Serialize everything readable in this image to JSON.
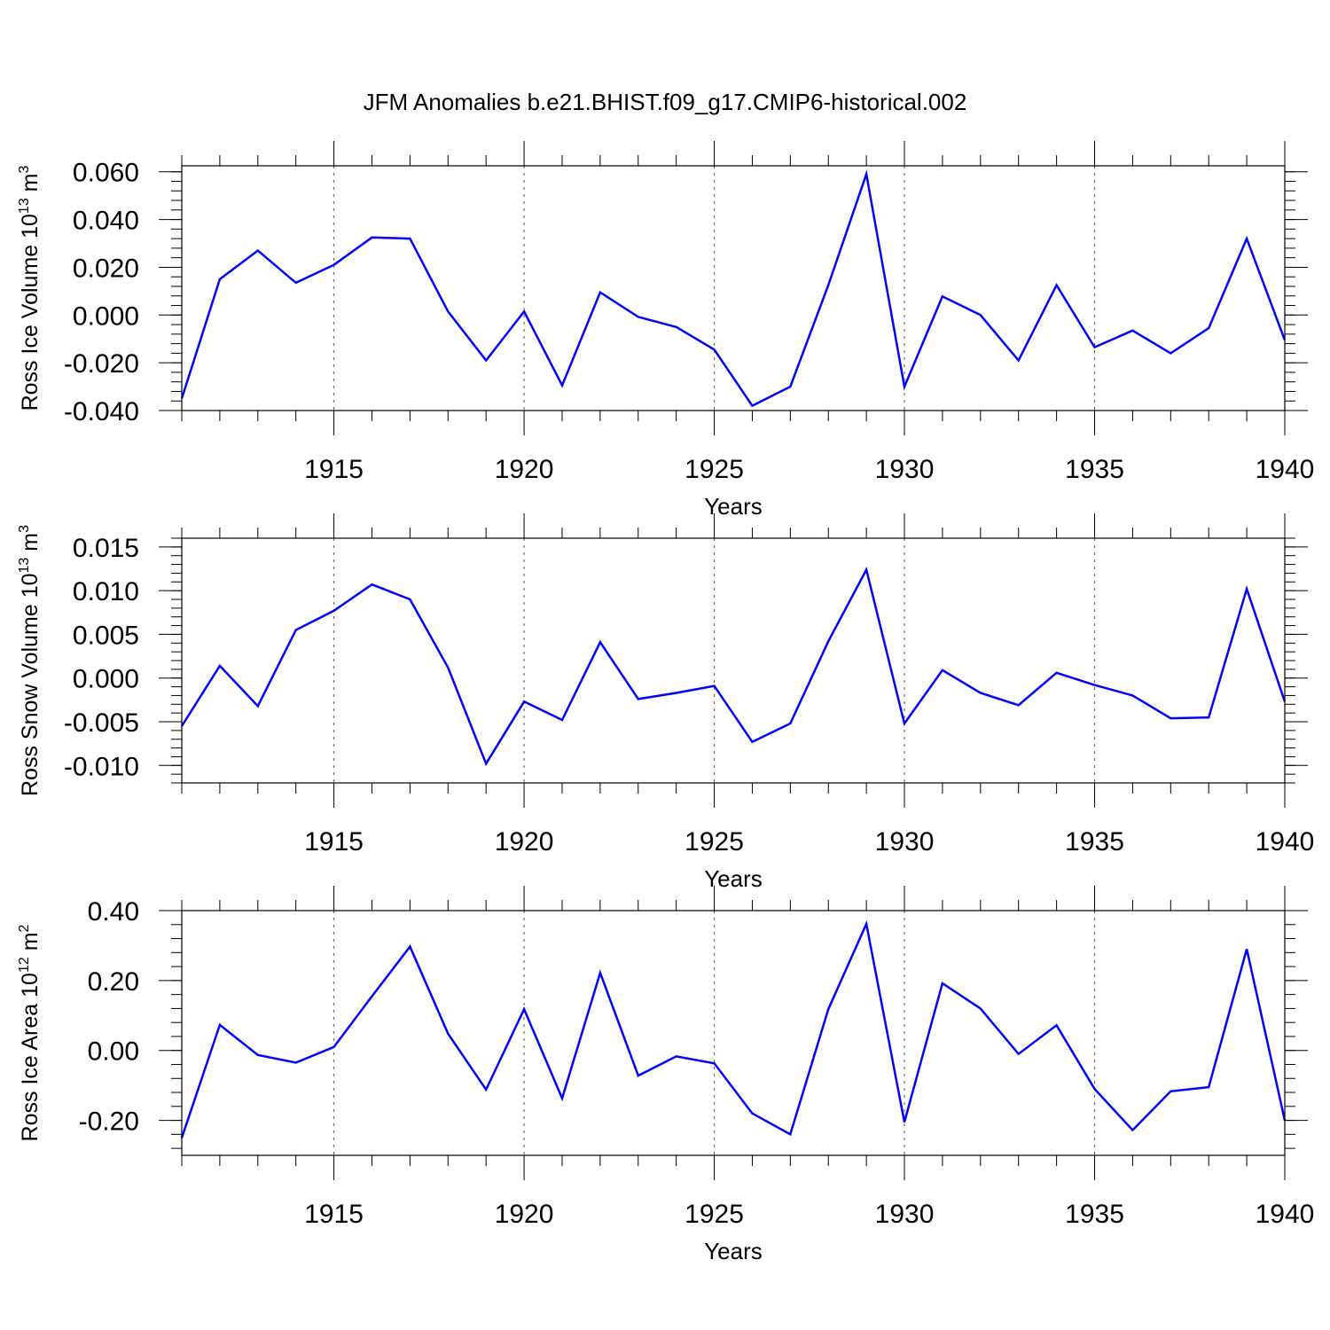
{
  "title": "JFM Anomalies b.e21.BHIST.f09_g17.CMIP6-historical.002",
  "colors": {
    "line": "#0000ff",
    "axis": "#000000",
    "grid": "#555555"
  },
  "chart_data": [
    {
      "type": "line",
      "ylabel": "Ross Ice Volume 10",
      "ylabel_sup": "13",
      "ylabel_unit": " m",
      "ylabel_unit_sup": "3",
      "xlabel": "Years",
      "xlim": [
        1911,
        1940
      ],
      "ylim": [
        -0.04,
        0.0625
      ],
      "yticks": [
        -0.04,
        -0.02,
        0.0,
        0.02,
        0.04,
        0.06
      ],
      "ytick_labels": [
        "-0.040",
        "-0.020",
        "0.000",
        "0.020",
        "0.040",
        "0.060"
      ],
      "xticks": [
        1915,
        1920,
        1925,
        1930,
        1935,
        1940
      ],
      "xtick_labels": [
        "1915",
        "1920",
        "1925",
        "1930",
        "1935",
        "1940"
      ],
      "x": [
        1911,
        1912,
        1913,
        1914,
        1915,
        1916,
        1917,
        1918,
        1919,
        1920,
        1921,
        1922,
        1923,
        1924,
        1925,
        1926,
        1927,
        1928,
        1929,
        1930,
        1931,
        1932,
        1933,
        1934,
        1935,
        1936,
        1937,
        1938,
        1939,
        1940
      ],
      "series": [
        {
          "name": "Ross Ice Volume",
          "values": [
            -0.035,
            0.015,
            0.027,
            0.0135,
            0.021,
            0.0325,
            0.032,
            0.0015,
            -0.019,
            0.0015,
            -0.0295,
            0.0095,
            -0.0008,
            -0.005,
            -0.0145,
            -0.038,
            -0.03,
            0.0125,
            0.059,
            -0.03,
            0.0078,
            0.0,
            -0.019,
            0.0125,
            -0.0135,
            -0.0065,
            -0.016,
            -0.0055,
            0.032,
            -0.0105
          ]
        }
      ]
    },
    {
      "type": "line",
      "ylabel": "Ross Snow Volume 10",
      "ylabel_sup": "13",
      "ylabel_unit": " m",
      "ylabel_unit_sup": "3",
      "xlabel": "Years",
      "xlim": [
        1911,
        1940
      ],
      "ylim": [
        -0.012,
        0.016
      ],
      "yticks": [
        -0.01,
        -0.005,
        0.0,
        0.005,
        0.01,
        0.015
      ],
      "ytick_labels": [
        "-0.010",
        "-0.005",
        "0.000",
        "0.005",
        "0.010",
        "0.015"
      ],
      "xticks": [
        1915,
        1920,
        1925,
        1930,
        1935,
        1940
      ],
      "xtick_labels": [
        "1915",
        "1920",
        "1925",
        "1930",
        "1935",
        "1940"
      ],
      "x": [
        1911,
        1912,
        1913,
        1914,
        1915,
        1916,
        1917,
        1918,
        1919,
        1920,
        1921,
        1922,
        1923,
        1924,
        1925,
        1926,
        1927,
        1928,
        1929,
        1930,
        1931,
        1932,
        1933,
        1934,
        1935,
        1936,
        1937,
        1938,
        1939,
        1940
      ],
      "series": [
        {
          "name": "Ross Snow Volume",
          "values": [
            -0.0055,
            0.0014,
            -0.0032,
            0.0055,
            0.0077,
            0.0107,
            0.009,
            0.0012,
            -0.0098,
            -0.0027,
            -0.0048,
            0.0041,
            -0.0024,
            -0.0017,
            -0.0009,
            -0.0073,
            -0.0052,
            0.0042,
            0.0124,
            -0.0052,
            0.0009,
            -0.0017,
            -0.0031,
            0.0006,
            -0.0008,
            -0.002,
            -0.0046,
            -0.0045,
            0.0102,
            -0.0027
          ]
        }
      ]
    },
    {
      "type": "line",
      "ylabel": "Ross Ice Area 10",
      "ylabel_sup": "12",
      "ylabel_unit": " m",
      "ylabel_unit_sup": "2",
      "xlabel": "Years",
      "xlim": [
        1911,
        1940
      ],
      "ylim": [
        -0.3,
        0.4
      ],
      "yticks": [
        -0.2,
        0.0,
        0.2,
        0.4
      ],
      "ytick_labels": [
        "-0.20",
        "0.00",
        "0.20",
        "0.40"
      ],
      "xticks": [
        1915,
        1920,
        1925,
        1930,
        1935,
        1940
      ],
      "xtick_labels": [
        "1915",
        "1920",
        "1925",
        "1930",
        "1935",
        "1940"
      ],
      "x": [
        1911,
        1912,
        1913,
        1914,
        1915,
        1916,
        1917,
        1918,
        1919,
        1920,
        1921,
        1922,
        1923,
        1924,
        1925,
        1926,
        1927,
        1928,
        1929,
        1930,
        1931,
        1932,
        1933,
        1934,
        1935,
        1936,
        1937,
        1938,
        1939,
        1940
      ],
      "series": [
        {
          "name": "Ross Ice Area",
          "values": [
            -0.25,
            0.073,
            -0.013,
            -0.035,
            0.01,
            0.155,
            0.297,
            0.048,
            -0.112,
            0.118,
            -0.137,
            0.222,
            -0.072,
            -0.017,
            -0.037,
            -0.18,
            -0.24,
            0.118,
            0.362,
            -0.205,
            0.192,
            0.12,
            -0.01,
            0.072,
            -0.11,
            -0.228,
            -0.117,
            -0.105,
            0.29,
            -0.2
          ]
        }
      ]
    }
  ]
}
